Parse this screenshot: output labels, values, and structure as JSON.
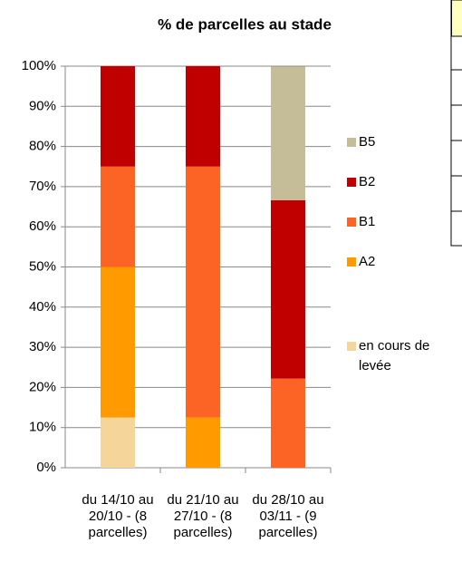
{
  "chart_data": {
    "type": "bar",
    "stacked": true,
    "title": "% de parcelles au stade",
    "categories": [
      "du 14/10 au 20/10 - (8 parcelles)",
      "du 21/10 au 27/10 - (8 parcelles)",
      "du 28/10 au 03/11 - (9 parcelles)"
    ],
    "series": [
      {
        "name": "en cours de levée",
        "color": "#f6d59b",
        "values": [
          12.5,
          0,
          0
        ]
      },
      {
        "name": "A2",
        "color": "#ff9a00",
        "values": [
          37.5,
          12.5,
          0
        ]
      },
      {
        "name": "B1",
        "color": "#fb6424",
        "values": [
          25,
          62.5,
          22.2
        ]
      },
      {
        "name": "B2",
        "color": "#c00000",
        "values": [
          25,
          25,
          44.4
        ]
      },
      {
        "name": "B5",
        "color": "#c5bd97",
        "values": [
          0,
          0,
          33.3
        ]
      }
    ],
    "ylim": [
      0,
      100
    ],
    "yticks": [
      {
        "value": 0,
        "label": "0%"
      },
      {
        "value": 10,
        "label": "10%"
      },
      {
        "value": 20,
        "label": "20%"
      },
      {
        "value": 30,
        "label": "30%"
      },
      {
        "value": 40,
        "label": "40%"
      },
      {
        "value": 50,
        "label": "50%"
      },
      {
        "value": 60,
        "label": "60%"
      },
      {
        "value": 70,
        "label": "70%"
      },
      {
        "value": 80,
        "label": "80%"
      },
      {
        "value": 90,
        "label": "90%"
      },
      {
        "value": 100,
        "label": "100%"
      }
    ],
    "grid": true,
    "legend": "right"
  }
}
